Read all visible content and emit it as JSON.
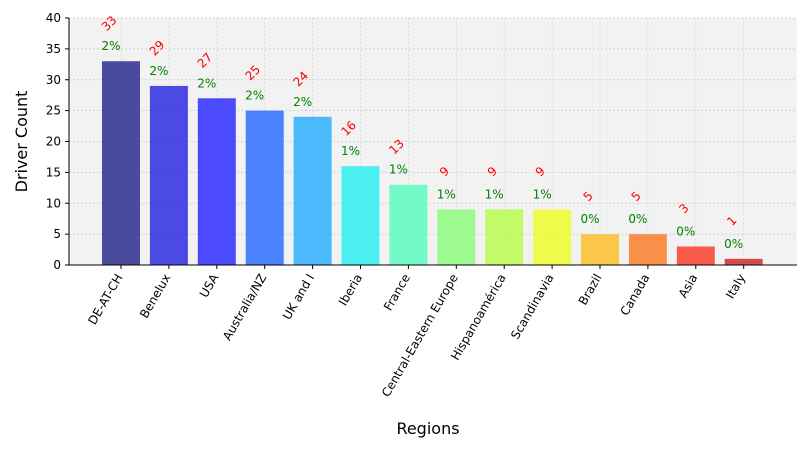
{
  "chart_data": {
    "type": "bar",
    "xlabel": "Regions",
    "ylabel": "Driver Count",
    "ylim": [
      0,
      40
    ],
    "yticks": [
      0,
      5,
      10,
      15,
      20,
      25,
      30,
      35,
      40
    ],
    "grid": true,
    "categories": [
      "DE-AT-CH",
      "Benelux",
      "USA",
      "Australia/NZ",
      "UK and I",
      "Iberia",
      "France",
      "Central-Eastern Europe",
      "Hispanoamérica",
      "Scandinavia",
      "Brazil",
      "Canada",
      "Asia",
      "Italy"
    ],
    "values": [
      33,
      29,
      27,
      25,
      24,
      16,
      13,
      9,
      9,
      9,
      5,
      5,
      3,
      1
    ],
    "percent_labels": [
      "2%",
      "2%",
      "2%",
      "2%",
      "2%",
      "1%",
      "1%",
      "1%",
      "1%",
      "1%",
      "0%",
      "0%",
      "0%",
      "0%"
    ],
    "colors": [
      "#2e2e8e",
      "#2e2ee0",
      "#2e2eff",
      "#2e6eff",
      "#2eb0ff",
      "#2eeef0",
      "#5efcc0",
      "#8efc80",
      "#bafc50",
      "#eefc2e",
      "#fcc02e",
      "#fc802e",
      "#fc402e",
      "#d02e2e"
    ],
    "count_label_color": "#ff0000",
    "percent_label_color": "#008000",
    "plot_background": "#f2f2f2"
  }
}
